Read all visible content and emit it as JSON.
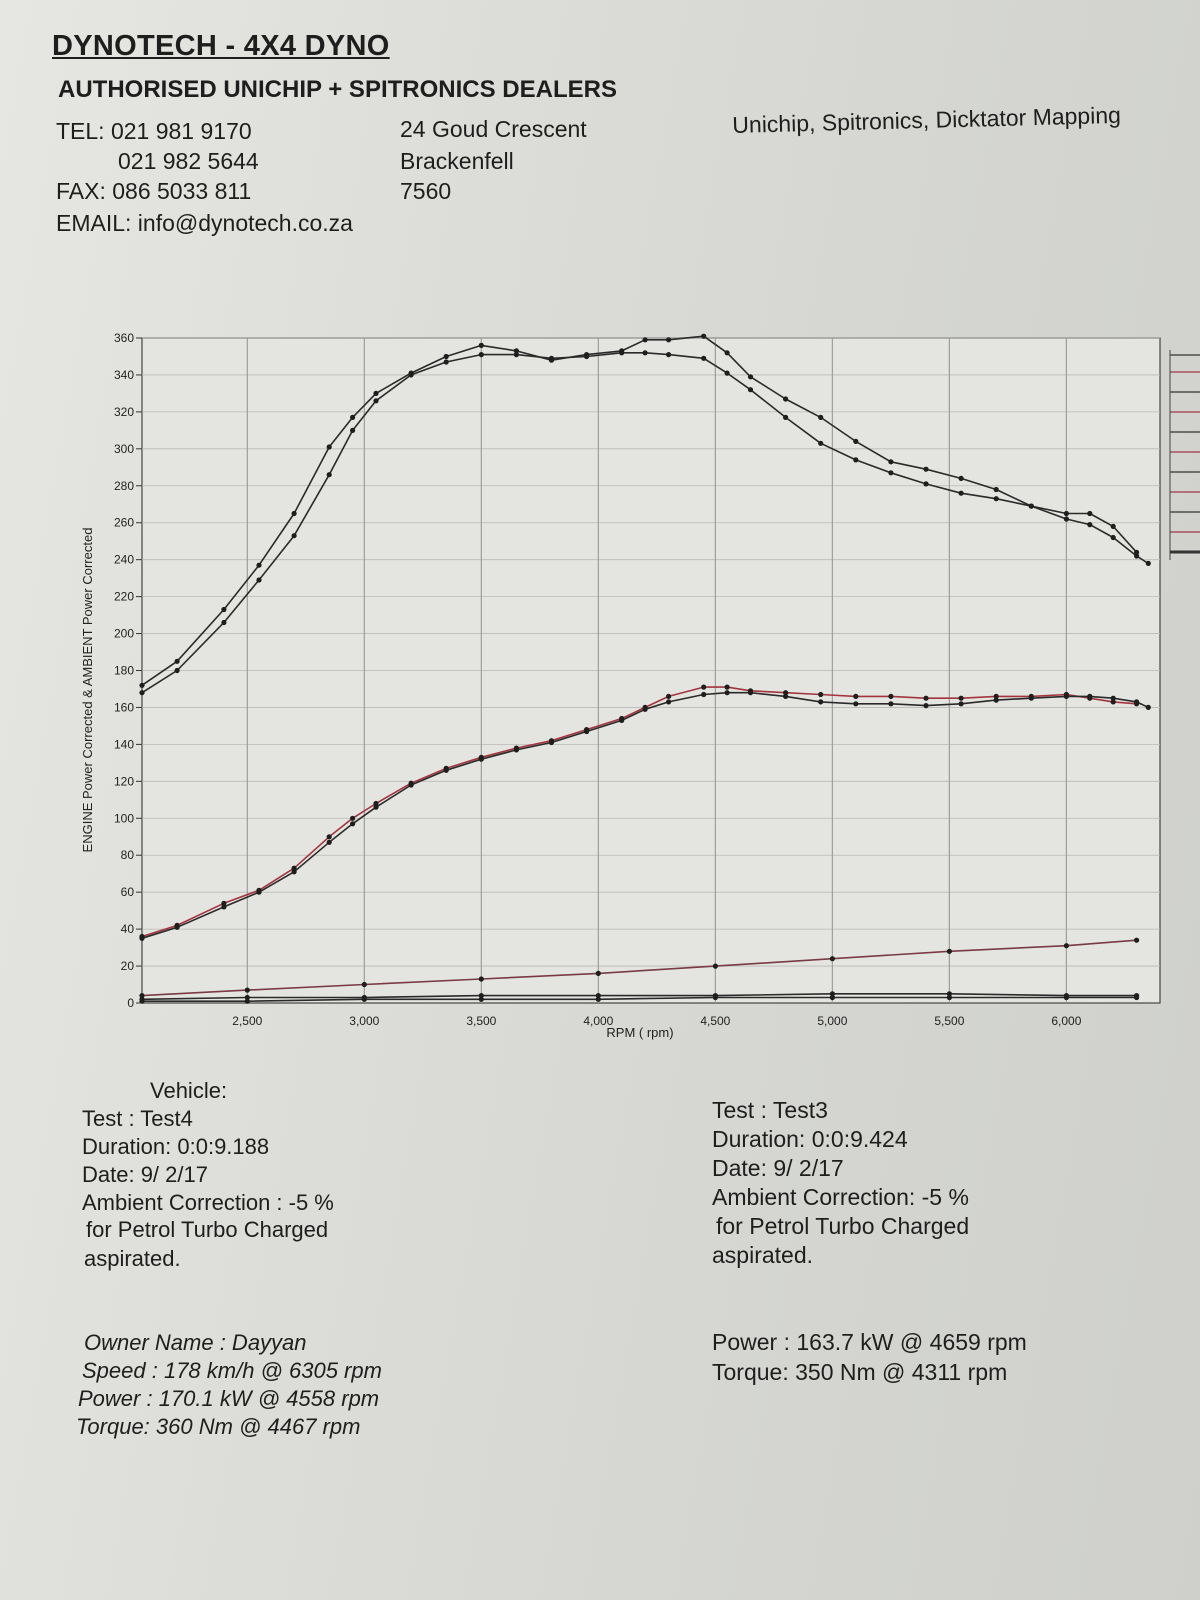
{
  "header": {
    "title": "DYNOTECH - 4X4 DYNO",
    "subtitle": "AUTHORISED UNICHIP + SPITRONICS DEALERS",
    "tel_label": "TEL: 021 981 9170",
    "tel2": "021 982 5644",
    "fax": "FAX: 086 5033 811",
    "email": "EMAIL: info@dynotech.co.za",
    "address1": "24 Goud Crescent",
    "address2": "Brackenfell",
    "address3": "7560",
    "services": "Unichip, Spitronics, Dicktator Mapping"
  },
  "chart_data": {
    "type": "line",
    "title": "",
    "xlabel": "RPM ( rpm)",
    "ylabel": "ENGINE Power Corrected & AMBIENT Power Corrected",
    "xlim": [
      2050,
      6400
    ],
    "ylim": [
      0,
      360
    ],
    "x_ticks": [
      2500,
      3000,
      3500,
      4000,
      4500,
      5000,
      5500,
      6000
    ],
    "x_tick_labels": [
      "2,500",
      "3,000",
      "3,500",
      "4,000",
      "4,500",
      "5,000",
      "5,500",
      "6,000"
    ],
    "y_ticks": [
      0,
      20,
      40,
      60,
      80,
      100,
      120,
      140,
      160,
      180,
      200,
      220,
      240,
      260,
      280,
      300,
      320,
      340,
      360
    ],
    "grid": true,
    "series": [
      {
        "color": "#2a2a2a",
        "x": [
          2050,
          2200,
          2400,
          2550,
          2700,
          2850,
          2950,
          3050,
          3200,
          3350,
          3500,
          3650,
          3800,
          3950,
          4100,
          4200,
          4300,
          4450,
          4550,
          4650,
          4800,
          4950,
          5100,
          5250,
          5400,
          5550,
          5700,
          5850,
          6000,
          6100,
          6200,
          6300
        ],
        "values": [
          172,
          185,
          213,
          237,
          265,
          301,
          317,
          330,
          341,
          350,
          356,
          353,
          348,
          351,
          353,
          359,
          359,
          361,
          352,
          339,
          327,
          317,
          304,
          293,
          289,
          284,
          278,
          269,
          265,
          265,
          258,
          244
        ]
      },
      {
        "color": "#2a2a2a",
        "x": [
          2050,
          2200,
          2400,
          2550,
          2700,
          2850,
          2950,
          3050,
          3200,
          3350,
          3500,
          3650,
          3800,
          3950,
          4100,
          4200,
          4300,
          4450,
          4550,
          4650,
          4800,
          4950,
          5100,
          5250,
          5400,
          5550,
          5700,
          5850,
          6000,
          6100,
          6200,
          6300,
          6350
        ],
        "values": [
          168,
          180,
          206,
          229,
          253,
          286,
          310,
          326,
          340,
          347,
          351,
          351,
          349,
          350,
          352,
          352,
          351,
          349,
          341,
          332,
          317,
          303,
          294,
          287,
          281,
          276,
          273,
          269,
          262,
          259,
          252,
          242,
          238
        ]
      },
      {
        "color": "#a3343d",
        "x": [
          2050,
          2200,
          2400,
          2550,
          2700,
          2850,
          2950,
          3050,
          3200,
          3350,
          3500,
          3650,
          3800,
          3950,
          4100,
          4200,
          4300,
          4450,
          4550,
          4650,
          4800,
          4950,
          5100,
          5250,
          5400,
          5550,
          5700,
          5850,
          6000,
          6100,
          6200,
          6300
        ],
        "values": [
          36,
          42,
          54,
          61,
          73,
          90,
          100,
          108,
          119,
          127,
          133,
          138,
          142,
          148,
          154,
          160,
          166,
          171,
          171,
          169,
          168,
          167,
          166,
          166,
          165,
          165,
          166,
          166,
          167,
          165,
          163,
          162
        ]
      },
      {
        "color": "#2a2a2a",
        "x": [
          2050,
          2200,
          2400,
          2550,
          2700,
          2850,
          2950,
          3050,
          3200,
          3350,
          3500,
          3650,
          3800,
          3950,
          4100,
          4200,
          4300,
          4450,
          4550,
          4650,
          4800,
          4950,
          5100,
          5250,
          5400,
          5550,
          5700,
          5850,
          6000,
          6100,
          6200,
          6300,
          6350
        ],
        "values": [
          35,
          41,
          52,
          60,
          71,
          87,
          97,
          106,
          118,
          126,
          132,
          137,
          141,
          147,
          153,
          159,
          163,
          167,
          168,
          168,
          166,
          163,
          162,
          162,
          161,
          162,
          164,
          165,
          166,
          166,
          165,
          163,
          160
        ]
      },
      {
        "color": "#7a3a44",
        "x": [
          2050,
          2500,
          3000,
          3500,
          4000,
          4500,
          5000,
          5500,
          6000,
          6300
        ],
        "values": [
          4,
          7,
          10,
          13,
          16,
          20,
          24,
          28,
          31,
          34
        ]
      },
      {
        "color": "#2a2a2a",
        "x": [
          2050,
          2500,
          3000,
          3500,
          4000,
          4500,
          5000,
          5500,
          6000,
          6300
        ],
        "values": [
          2,
          3,
          3,
          4,
          4,
          4,
          5,
          5,
          4,
          4
        ]
      },
      {
        "color": "#2a2a2a",
        "x": [
          2050,
          2500,
          3000,
          3500,
          4000,
          4500,
          5000,
          5500,
          6000,
          6300
        ],
        "values": [
          1,
          1,
          2,
          2,
          2,
          3,
          3,
          3,
          3,
          3
        ]
      }
    ]
  },
  "test4": {
    "vehicle": "Vehicle:",
    "test": "Test    : Test4",
    "duration": "Duration: 0:0:9.188",
    "date": "Date:  9/ 2/17",
    "ambient": "Ambient Correction : -5 %",
    "for": " for Petrol Turbo Charged",
    "aspirated": "aspirated.",
    "owner": "Owner Name : Dayyan",
    "speed": "Speed : 178 km/h @ 6305 rpm",
    "power": "Power : 170.1 kW @ 4558 rpm",
    "torque": "Torque: 360 Nm @ 4467 rpm"
  },
  "test3": {
    "test": "Test    : Test3",
    "duration": "Duration: 0:0:9.424",
    "date": "Date:  9/ 2/17",
    "ambient": "Ambient Correction: -5 %",
    "for": " for Petrol Turbo Charged",
    "aspirated": "aspirated.",
    "power": "Power : 163.7 kW @ 4659 rpm",
    "torque": "Torque: 350 Nm @ 4311 rpm"
  }
}
